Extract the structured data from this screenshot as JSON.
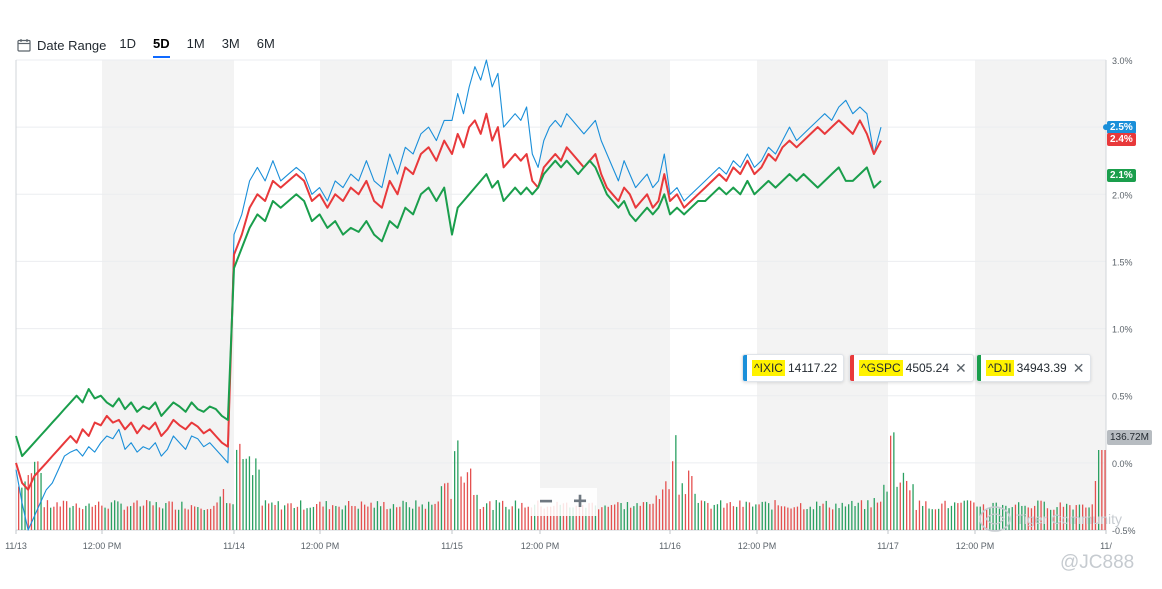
{
  "toolbar": {
    "date_range_label": "Date Range",
    "ranges": [
      {
        "label": "1D",
        "active": false
      },
      {
        "label": "5D",
        "active": true
      },
      {
        "label": "1M",
        "active": false
      },
      {
        "label": "3M",
        "active": false
      },
      {
        "label": "6M",
        "active": false
      }
    ]
  },
  "legend": [
    {
      "symbol": "^IXIC",
      "value": "14117.22",
      "color": "#1a8fd9",
      "closable": false
    },
    {
      "symbol": "^GSPC",
      "value": "4505.24",
      "color": "#e8393b",
      "closable": true
    },
    {
      "symbol": "^DJI",
      "value": "34943.39",
      "color": "#1a9e4c",
      "closable": true
    }
  ],
  "volume_badge": "136.72M",
  "zoom": {
    "minus": "−",
    "plus": "+"
  },
  "watermark": {
    "brand": "Tiger Community",
    "handle": "@JC888"
  },
  "chart_data": {
    "type": "line",
    "x_ticks": [
      "11/13",
      "12:00 PM",
      "11/14",
      "12:00 PM",
      "11/15",
      "12:00 PM",
      "11/16",
      "12:00 PM",
      "11/17",
      "12:00 PM",
      "11/"
    ],
    "y_ticks": [
      "3.0%",
      "2.5%",
      "2.0%",
      "1.5%",
      "1.0%",
      "0.5%",
      "0.0%",
      "-0.5%"
    ],
    "ylim": [
      -0.5,
      3.0
    ],
    "y_unit": "%",
    "grid": true,
    "legend_position": "middle-right",
    "colors": {
      "ixic": "#1a8fd9",
      "gspc": "#e8393b",
      "dji": "#1a9e4c",
      "vol_up": "#2aa061",
      "vol_down": "#e4504f",
      "shade": "#f3f3f3"
    },
    "series": [
      {
        "name": "^IXIC",
        "color": "#1a8fd9",
        "last_label": "2.5%",
        "values": [
          -0.05,
          -0.3,
          -0.5,
          -0.4,
          -0.3,
          -0.2,
          -0.15,
          -0.05,
          0.05,
          0.08,
          0.1,
          0.05,
          0.12,
          0.08,
          0.15,
          0.2,
          0.18,
          0.25,
          0.1,
          0.15,
          0.08,
          0.12,
          0.1,
          0.15,
          0.05,
          0.1,
          0.2,
          0.15,
          0.1,
          0.2,
          0.18,
          0.12,
          0.15,
          0.1,
          0.05,
          0.0,
          1.7,
          1.85,
          2.1,
          2.2,
          2.1,
          2.25,
          2.1,
          2.15,
          2.2,
          2.15,
          2.0,
          2.05,
          1.95,
          2.1,
          2.05,
          2.15,
          2.1,
          2.25,
          2.1,
          2.05,
          2.3,
          2.15,
          2.35,
          2.3,
          2.45,
          2.5,
          2.4,
          2.55,
          2.55,
          2.75,
          2.6,
          2.8,
          2.95,
          2.85,
          3.0,
          2.8,
          2.9,
          2.5,
          2.55,
          2.6,
          2.55,
          2.65,
          2.3,
          2.2,
          2.4,
          2.5,
          2.55,
          2.5,
          2.6,
          2.55,
          2.5,
          2.45,
          2.5,
          2.55,
          2.4,
          2.3,
          2.2,
          2.1,
          2.25,
          2.15,
          2.05,
          2.1,
          2.15,
          2.05,
          2.1,
          2.3,
          2.0,
          2.05,
          1.95,
          2.0,
          2.05,
          2.1,
          2.15,
          2.2,
          2.15,
          2.25,
          2.2,
          2.3,
          2.2,
          2.25,
          2.35,
          2.3,
          2.4,
          2.5,
          2.4,
          2.45,
          2.5,
          2.55,
          2.6,
          2.55,
          2.65,
          2.7,
          2.6,
          2.65,
          2.6,
          2.3,
          2.5
        ]
      },
      {
        "name": "^GSPC",
        "color": "#e8393b",
        "last_label": "2.4%",
        "values": [
          0.0,
          -0.15,
          -0.2,
          -0.1,
          -0.05,
          0.0,
          0.05,
          0.1,
          0.15,
          0.2,
          0.15,
          0.25,
          0.2,
          0.3,
          0.28,
          0.35,
          0.3,
          0.32,
          0.25,
          0.3,
          0.22,
          0.28,
          0.25,
          0.3,
          0.2,
          0.25,
          0.32,
          0.28,
          0.25,
          0.3,
          0.27,
          0.22,
          0.25,
          0.2,
          0.15,
          0.12,
          1.55,
          1.7,
          1.9,
          2.0,
          1.95,
          2.1,
          2.05,
          2.1,
          2.15,
          2.1,
          1.95,
          2.0,
          1.9,
          2.0,
          1.95,
          2.05,
          2.0,
          2.1,
          1.95,
          1.9,
          2.1,
          2.0,
          2.2,
          2.15,
          2.3,
          2.35,
          2.25,
          2.4,
          2.3,
          2.45,
          2.35,
          2.5,
          2.55,
          2.45,
          2.6,
          2.4,
          2.5,
          2.2,
          2.25,
          2.3,
          2.25,
          2.3,
          2.1,
          2.05,
          2.2,
          2.25,
          2.3,
          2.25,
          2.35,
          2.3,
          2.25,
          2.2,
          2.25,
          2.3,
          2.15,
          2.05,
          2.0,
          1.95,
          2.05,
          2.0,
          1.9,
          1.95,
          2.0,
          1.9,
          1.95,
          2.15,
          1.95,
          2.0,
          1.9,
          1.95,
          2.0,
          2.05,
          2.1,
          2.15,
          2.1,
          2.2,
          2.15,
          2.25,
          2.15,
          2.2,
          2.3,
          2.25,
          2.35,
          2.4,
          2.35,
          2.4,
          2.45,
          2.5,
          2.45,
          2.5,
          2.55,
          2.5,
          2.45,
          2.55,
          2.45,
          2.3,
          2.4
        ]
      },
      {
        "name": "^DJI",
        "color": "#1a9e4c",
        "last_label": "2.1%",
        "values": [
          0.2,
          0.05,
          0.1,
          0.15,
          0.2,
          0.25,
          0.3,
          0.35,
          0.4,
          0.45,
          0.5,
          0.45,
          0.55,
          0.48,
          0.5,
          0.45,
          0.42,
          0.48,
          0.4,
          0.45,
          0.38,
          0.42,
          0.4,
          0.45,
          0.35,
          0.4,
          0.45,
          0.42,
          0.38,
          0.45,
          0.4,
          0.38,
          0.42,
          0.4,
          0.35,
          0.32,
          1.45,
          1.6,
          1.75,
          1.85,
          1.8,
          1.95,
          1.9,
          1.95,
          2.0,
          1.95,
          1.8,
          1.85,
          1.75,
          1.8,
          1.7,
          1.75,
          1.72,
          1.8,
          1.7,
          1.65,
          1.8,
          1.75,
          1.9,
          1.85,
          2.0,
          2.05,
          1.95,
          2.05,
          1.7,
          1.9,
          1.95,
          2.0,
          2.05,
          2.1,
          2.15,
          2.05,
          2.1,
          1.95,
          2.0,
          2.05,
          2.0,
          2.05,
          2.0,
          2.05,
          2.15,
          2.2,
          2.25,
          2.2,
          2.25,
          2.2,
          2.15,
          2.2,
          2.25,
          2.2,
          2.1,
          2.0,
          1.95,
          1.9,
          1.95,
          1.85,
          1.8,
          1.85,
          1.9,
          1.85,
          1.9,
          2.0,
          1.85,
          1.9,
          1.85,
          1.9,
          1.95,
          1.95,
          2.0,
          2.05,
          2.0,
          2.05,
          2.0,
          2.1,
          2.0,
          2.05,
          2.1,
          2.05,
          2.1,
          2.15,
          2.1,
          2.15,
          2.1,
          2.05,
          2.1,
          2.15,
          2.2,
          2.1,
          2.1,
          2.15,
          2.2,
          2.05,
          2.1
        ]
      }
    ]
  }
}
